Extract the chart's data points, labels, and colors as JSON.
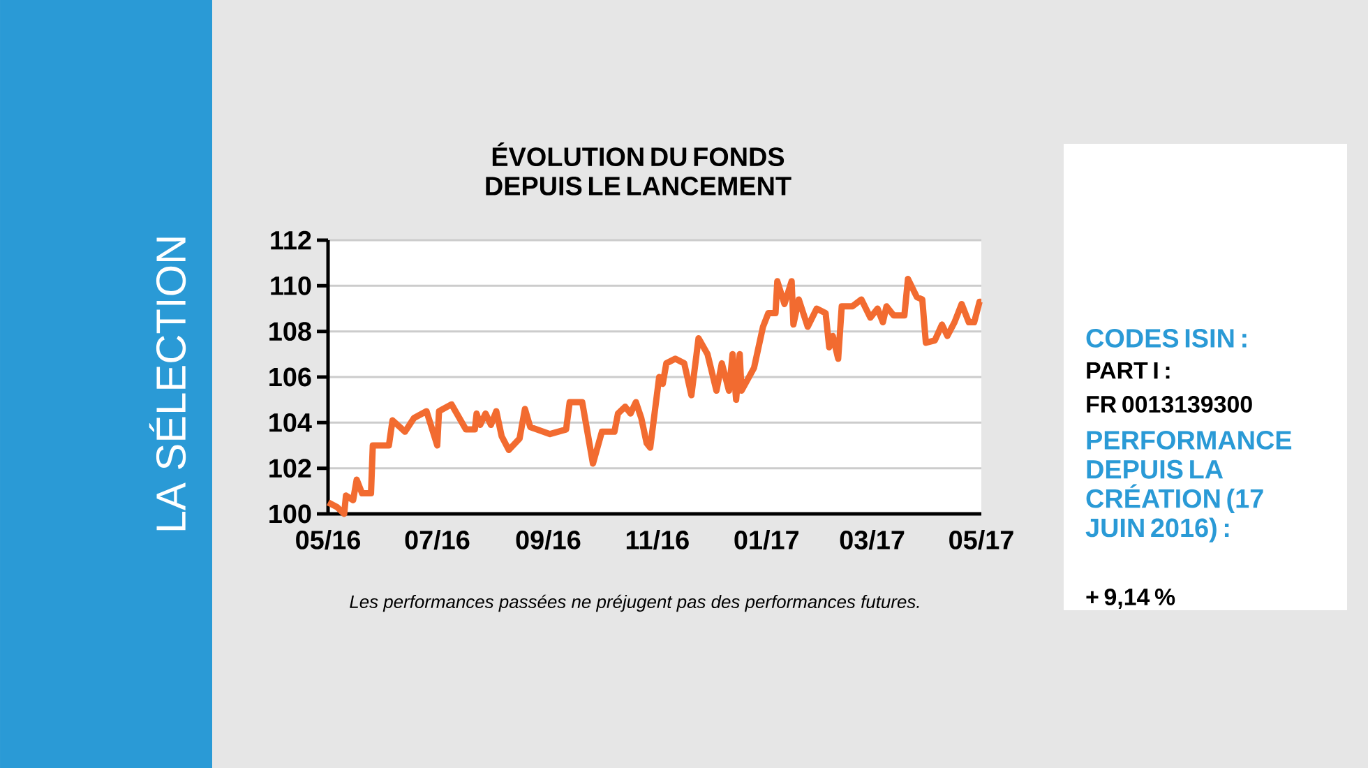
{
  "chart_data": {
    "type": "line",
    "title": "ÉVOLUTION DU FONDS DEPUIS LE LANCEMENT",
    "x": [
      "2016-05-01",
      "2016-05-06",
      "2016-05-10",
      "2016-05-11",
      "2016-05-15",
      "2016-05-17",
      "2016-05-20",
      "2016-05-25",
      "2016-05-26",
      "2016-06-04",
      "2016-06-06",
      "2016-06-13",
      "2016-06-18",
      "2016-06-25",
      "2016-07-01",
      "2016-07-02",
      "2016-07-09",
      "2016-07-17",
      "2016-07-22",
      "2016-07-23",
      "2016-07-25",
      "2016-07-28",
      "2016-07-31",
      "2016-08-03",
      "2016-08-06",
      "2016-08-10",
      "2016-08-16",
      "2016-08-19",
      "2016-08-22",
      "2016-09-02",
      "2016-09-11",
      "2016-09-13",
      "2016-09-20",
      "2016-09-26",
      "2016-10-01",
      "2016-10-08",
      "2016-10-10",
      "2016-10-14",
      "2016-10-17",
      "2016-10-20",
      "2016-10-23",
      "2016-10-26",
      "2016-10-28",
      "2016-11-02",
      "2016-11-04",
      "2016-11-06",
      "2016-11-11",
      "2016-11-16",
      "2016-11-20",
      "2016-11-24",
      "2016-11-29",
      "2016-12-04",
      "2016-12-07",
      "2016-12-11",
      "2016-12-13",
      "2016-12-15",
      "2016-12-17",
      "2016-12-18",
      "2016-12-25",
      "2016-12-30",
      "2017-01-02",
      "2017-01-06",
      "2017-01-07",
      "2017-01-11",
      "2017-01-15",
      "2017-01-16",
      "2017-01-19",
      "2017-01-24",
      "2017-01-29",
      "2017-02-03",
      "2017-02-05",
      "2017-02-07",
      "2017-02-10",
      "2017-02-12",
      "2017-02-18",
      "2017-02-23",
      "2017-02-28",
      "2017-03-04",
      "2017-03-07",
      "2017-03-09",
      "2017-03-13",
      "2017-03-19",
      "2017-03-21",
      "2017-03-26",
      "2017-03-29",
      "2017-03-31",
      "2017-04-05",
      "2017-04-09",
      "2017-04-12",
      "2017-04-16",
      "2017-04-20",
      "2017-04-24",
      "2017-04-27",
      "2017-04-30",
      "2017-05-01"
    ],
    "series": [
      {
        "color": "#f26b30",
        "values": [
          100.5,
          100.3,
          100.0,
          100.8,
          100.6,
          101.5,
          100.9,
          100.9,
          103.0,
          103.0,
          104.1,
          103.6,
          104.2,
          104.5,
          103.0,
          104.5,
          104.8,
          103.7,
          103.7,
          104.4,
          103.9,
          104.4,
          103.9,
          104.5,
          103.4,
          102.8,
          103.3,
          104.6,
          103.8,
          103.5,
          103.7,
          104.9,
          104.9,
          102.2,
          103.6,
          103.6,
          104.4,
          104.7,
          104.4,
          104.9,
          104.2,
          103.1,
          102.9,
          106.0,
          105.7,
          106.6,
          106.8,
          106.6,
          105.2,
          107.7,
          107.0,
          105.4,
          106.6,
          105.4,
          107.0,
          105.0,
          107.0,
          105.4,
          106.4,
          108.2,
          108.8,
          108.8,
          110.2,
          109.2,
          110.2,
          108.3,
          109.4,
          108.2,
          109.0,
          108.8,
          107.3,
          107.8,
          106.8,
          109.1,
          109.1,
          109.4,
          108.6,
          109.0,
          108.4,
          109.1,
          108.7,
          108.7,
          110.3,
          109.5,
          109.4,
          107.5,
          107.6,
          108.3,
          107.8,
          108.4,
          109.2,
          108.4,
          108.4,
          109.3,
          109.3
        ]
      }
    ],
    "xlim": [
      "2016-05-01",
      "2017-05-01"
    ],
    "xticks": [
      {
        "value": "2016-05-01",
        "label": "05/16"
      },
      {
        "value": "2016-07-01",
        "label": "07/16"
      },
      {
        "value": "2016-09-01",
        "label": "09/16"
      },
      {
        "value": "2016-11-01",
        "label": "11/16"
      },
      {
        "value": "2017-01-01",
        "label": "01/17"
      },
      {
        "value": "2017-03-01",
        "label": "03/17"
      },
      {
        "value": "2017-05-01",
        "label": "05/17"
      }
    ],
    "ylim": [
      100,
      112
    ],
    "yticks": [
      100,
      102,
      104,
      106,
      108,
      110,
      112
    ],
    "grid": "y",
    "annotations": [
      "Les performances passées ne préjugent pas des performances futures.",
      "LA SÉLECTION",
      "CODES ISIN :",
      "PART I :",
      "FR 0013139300",
      "PERFORMANCE DEPUIS LA CRÉATION (17 JUIN 2016) :",
      "+ 9,14 %"
    ]
  }
}
